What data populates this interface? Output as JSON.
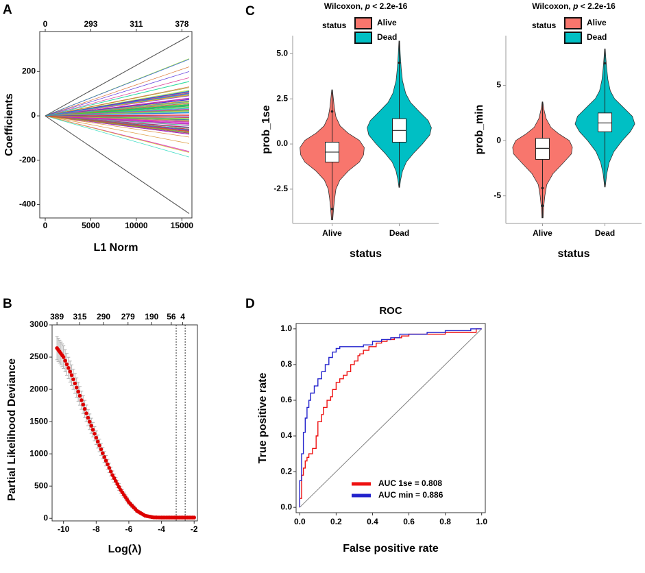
{
  "colors": {
    "alive": "#f8766d",
    "dead": "#00bfc4",
    "auc_1se": "#ee1111",
    "auc_min": "#2222cc",
    "cv_point": "#dd0000",
    "cv_error": "#b0b0b0",
    "diagonal": "#808080"
  },
  "panels": {
    "a": "A",
    "b": "B",
    "c": "C",
    "d": "D"
  },
  "chart_data": [
    {
      "id": "A",
      "type": "line",
      "title": "",
      "xlabel": "L1 Norm",
      "ylabel": "Coefficients",
      "xlim": [
        0,
        15800
      ],
      "ylim": [
        -460,
        380
      ],
      "xticks": [
        0,
        5000,
        10000,
        15000
      ],
      "yticks": [
        -400,
        -200,
        0,
        200
      ],
      "top_axis": {
        "positions": [
          0,
          5000,
          10000,
          15000
        ],
        "labels": [
          "0",
          "293",
          "311",
          "378"
        ]
      },
      "lines_summary": {
        "n_paths": 378,
        "end_l1": 15800,
        "extreme_paths": [
          {
            "name": "upper",
            "end_value": 360
          },
          {
            "name": "lower",
            "end_value": -440
          }
        ],
        "bulk_range_at_end": [
          -190,
          285
        ]
      }
    },
    {
      "id": "B",
      "type": "scatter",
      "title": "",
      "xlabel": "Log(λ)",
      "ylabel": "Partial Likelihood Deviance",
      "xlim": [
        -10.7,
        -1.8
      ],
      "ylim": [
        -40,
        3000
      ],
      "xticks": [
        -10,
        -8,
        -6,
        -4,
        -2
      ],
      "yticks": [
        0,
        500,
        1000,
        1500,
        2000,
        2500,
        3000
      ],
      "top_axis": {
        "positions": [
          -10.4,
          -9.0,
          -7.55,
          -6.05,
          -4.6,
          -3.4,
          -2.7
        ],
        "labels": [
          "389",
          "315",
          "290",
          "279",
          "190",
          "56",
          "4"
        ]
      },
      "vlines": [
        -3.1,
        -2.55
      ],
      "series": [
        {
          "name": "cv_deviance",
          "x": [
            -10.4,
            -10.0,
            -9.5,
            -9.0,
            -8.5,
            -8.0,
            -7.5,
            -7.0,
            -6.5,
            -6.0,
            -5.5,
            -5.0,
            -4.5,
            -4.0,
            -3.5,
            -3.0,
            -2.5,
            -2.0
          ],
          "values": [
            2640,
            2500,
            2220,
            1900,
            1560,
            1250,
            950,
            670,
            440,
            250,
            115,
            40,
            15,
            12,
            12,
            12,
            12,
            12
          ],
          "errors": [
            180,
            175,
            160,
            145,
            125,
            105,
            85,
            65,
            48,
            32,
            20,
            12,
            6,
            4,
            4,
            4,
            4,
            4
          ]
        }
      ]
    },
    {
      "id": "C1",
      "type": "violin",
      "title": "Wilcoxon, p < 2.2e-16",
      "subtitle_prefix": "Wilcoxon, ",
      "subtitle_p": "p",
      "subtitle_rest": " < 2.2e-16",
      "xlabel": "status",
      "ylabel": "prob_1se",
      "categories": [
        "Alive",
        "Dead"
      ],
      "ylim": [
        -4.4,
        6.0
      ],
      "yticks": [
        -2.5,
        0.0,
        2.5,
        5.0
      ],
      "ytick_labels": [
        "-2.5",
        "0.0",
        "2.5",
        "5.0"
      ],
      "legend": {
        "title": "status",
        "entries": [
          "Alive",
          "Dead"
        ],
        "placement": "top"
      },
      "groups": [
        {
          "name": "Alive",
          "min": -4.2,
          "q1": -1.0,
          "median": -0.45,
          "q3": 0.1,
          "max": 3.0,
          "outliers": [
            1.8,
            -3.6
          ],
          "density": [
            [
              -4.2,
              0.02
            ],
            [
              -3.5,
              0.05
            ],
            [
              -3.0,
              0.08
            ],
            [
              -2.5,
              0.12
            ],
            [
              -2.0,
              0.24
            ],
            [
              -1.5,
              0.5
            ],
            [
              -1.0,
              0.85
            ],
            [
              -0.6,
              0.98
            ],
            [
              -0.2,
              1.0
            ],
            [
              0.2,
              0.85
            ],
            [
              0.6,
              0.5
            ],
            [
              1.0,
              0.25
            ],
            [
              1.5,
              0.12
            ],
            [
              2.0,
              0.07
            ],
            [
              2.5,
              0.04
            ],
            [
              3.0,
              0.01
            ]
          ]
        },
        {
          "name": "Dead",
          "min": -2.4,
          "q1": 0.1,
          "median": 0.75,
          "q3": 1.4,
          "max": 5.7,
          "outliers": [
            4.5
          ],
          "density": [
            [
              -2.4,
              0.01
            ],
            [
              -2.0,
              0.04
            ],
            [
              -1.5,
              0.1
            ],
            [
              -1.0,
              0.22
            ],
            [
              -0.5,
              0.45
            ],
            [
              0.0,
              0.72
            ],
            [
              0.5,
              0.95
            ],
            [
              0.9,
              1.0
            ],
            [
              1.3,
              0.9
            ],
            [
              1.8,
              0.62
            ],
            [
              2.3,
              0.35
            ],
            [
              2.8,
              0.2
            ],
            [
              3.5,
              0.1
            ],
            [
              4.2,
              0.06
            ],
            [
              5.0,
              0.03
            ],
            [
              5.7,
              0.01
            ]
          ]
        }
      ]
    },
    {
      "id": "C2",
      "type": "violin",
      "title": "Wilcoxon, p < 2.2e-16",
      "subtitle_prefix": "Wilcoxon, ",
      "subtitle_p": "p",
      "subtitle_rest": " < 2.2e-16",
      "xlabel": "status",
      "ylabel": "prob_min",
      "categories": [
        "Alive",
        "Dead"
      ],
      "ylim": [
        -7.5,
        9.5
      ],
      "yticks": [
        -5,
        0,
        5
      ],
      "ytick_labels": [
        "-5",
        "0",
        "5"
      ],
      "legend": {
        "title": "status",
        "entries": [
          "Alive",
          "Dead"
        ],
        "placement": "top"
      },
      "groups": [
        {
          "name": "Alive",
          "min": -7.0,
          "q1": -1.7,
          "median": -0.7,
          "q3": 0.2,
          "max": 3.5,
          "outliers": [
            -4.3,
            -5.9
          ],
          "density": [
            [
              -7.0,
              0.02
            ],
            [
              -6.0,
              0.04
            ],
            [
              -5.0,
              0.08
            ],
            [
              -4.0,
              0.14
            ],
            [
              -3.0,
              0.35
            ],
            [
              -2.0,
              0.7
            ],
            [
              -1.2,
              0.97
            ],
            [
              -0.6,
              1.0
            ],
            [
              0.0,
              0.9
            ],
            [
              0.6,
              0.55
            ],
            [
              1.2,
              0.28
            ],
            [
              2.0,
              0.12
            ],
            [
              2.8,
              0.05
            ],
            [
              3.5,
              0.01
            ]
          ]
        },
        {
          "name": "Dead",
          "min": -4.2,
          "q1": 0.8,
          "median": 1.6,
          "q3": 2.5,
          "max": 8.3,
          "outliers": [
            7.0
          ],
          "density": [
            [
              -4.2,
              0.01
            ],
            [
              -3.0,
              0.06
            ],
            [
              -2.0,
              0.14
            ],
            [
              -1.0,
              0.3
            ],
            [
              0.0,
              0.58
            ],
            [
              0.8,
              0.85
            ],
            [
              1.5,
              1.0
            ],
            [
              2.2,
              0.92
            ],
            [
              3.0,
              0.62
            ],
            [
              3.8,
              0.32
            ],
            [
              4.5,
              0.18
            ],
            [
              5.5,
              0.1
            ],
            [
              6.5,
              0.06
            ],
            [
              7.5,
              0.03
            ],
            [
              8.3,
              0.01
            ]
          ]
        }
      ]
    },
    {
      "id": "D",
      "type": "line",
      "title": "ROC",
      "xlabel": "False positive rate",
      "ylabel": "True positive rate",
      "xlim": [
        -0.02,
        1.02
      ],
      "ylim": [
        -0.03,
        1.03
      ],
      "xticks": [
        0.0,
        0.2,
        0.4,
        0.6,
        0.8,
        1.0
      ],
      "yticks": [
        0.0,
        0.2,
        0.4,
        0.6,
        0.8,
        1.0
      ],
      "tick_labels": [
        "0.0",
        "0.2",
        "0.4",
        "0.6",
        "0.8",
        "1.0"
      ],
      "legend_placement": "bottom-right",
      "series": [
        {
          "name": "AUC 1se = 0.808",
          "color_key": "auc_1se",
          "x": [
            0.0,
            0.0,
            0.01,
            0.01,
            0.02,
            0.03,
            0.04,
            0.05,
            0.07,
            0.09,
            0.1,
            0.12,
            0.13,
            0.15,
            0.17,
            0.18,
            0.2,
            0.22,
            0.24,
            0.26,
            0.28,
            0.3,
            0.32,
            0.33,
            0.35,
            0.38,
            0.42,
            0.45,
            0.48,
            0.52,
            0.56,
            0.6,
            0.7,
            0.8,
            0.9,
            0.97,
            0.97,
            1.0
          ],
          "y": [
            0.0,
            0.05,
            0.1,
            0.18,
            0.22,
            0.26,
            0.28,
            0.3,
            0.33,
            0.4,
            0.48,
            0.52,
            0.56,
            0.6,
            0.62,
            0.66,
            0.7,
            0.72,
            0.74,
            0.76,
            0.8,
            0.82,
            0.85,
            0.86,
            0.88,
            0.9,
            0.92,
            0.93,
            0.94,
            0.95,
            0.96,
            0.97,
            0.97,
            0.98,
            0.98,
            0.98,
            1.0,
            1.0
          ]
        },
        {
          "name": "AUC min = 0.886",
          "color_key": "auc_min",
          "x": [
            0.0,
            0.0,
            0.01,
            0.02,
            0.03,
            0.04,
            0.05,
            0.06,
            0.08,
            0.1,
            0.12,
            0.14,
            0.16,
            0.18,
            0.2,
            0.22,
            0.25,
            0.3,
            0.35,
            0.4,
            0.45,
            0.5,
            0.55,
            0.6,
            0.7,
            0.8,
            0.9,
            0.94,
            1.0
          ],
          "y": [
            0.0,
            0.15,
            0.3,
            0.42,
            0.5,
            0.56,
            0.6,
            0.64,
            0.68,
            0.72,
            0.76,
            0.8,
            0.84,
            0.87,
            0.89,
            0.9,
            0.9,
            0.9,
            0.91,
            0.93,
            0.94,
            0.95,
            0.97,
            0.97,
            0.98,
            0.99,
            0.99,
            1.0,
            1.0
          ]
        }
      ],
      "diagonal": true
    }
  ]
}
